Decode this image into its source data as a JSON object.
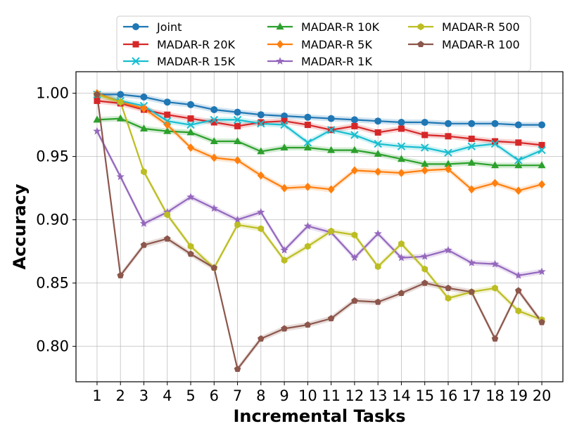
{
  "chart_data": {
    "type": "line",
    "title": "",
    "xlabel": "Incremental Tasks",
    "ylabel": "Accuracy",
    "x": [
      1,
      2,
      3,
      4,
      5,
      6,
      7,
      8,
      9,
      10,
      11,
      12,
      13,
      14,
      15,
      16,
      17,
      18,
      19,
      20
    ],
    "xticks": [
      "1",
      "2",
      "3",
      "4",
      "5",
      "6",
      "7",
      "8",
      "9",
      "10",
      "11",
      "12",
      "13",
      "14",
      "15",
      "16",
      "17",
      "18",
      "19",
      "20"
    ],
    "yticks": [
      "0.80",
      "0.85",
      "0.90",
      "0.95",
      "1.00"
    ],
    "ylim": [
      0.772,
      1.017
    ],
    "xlim": [
      0.1,
      20.9
    ],
    "grid": true,
    "legend_position": "top",
    "series": [
      {
        "name": "Joint",
        "color": "#1f77b4",
        "marker": "circle",
        "values": [
          0.999,
          0.999,
          0.997,
          0.993,
          0.991,
          0.987,
          0.985,
          0.983,
          0.982,
          0.981,
          0.98,
          0.979,
          0.978,
          0.977,
          0.977,
          0.976,
          0.976,
          0.976,
          0.975,
          0.975
        ]
      },
      {
        "name": "MADAR-R 20K",
        "color": "#d62728",
        "marker": "square",
        "values": [
          0.994,
          0.992,
          0.987,
          0.983,
          0.98,
          0.977,
          0.974,
          0.977,
          0.978,
          0.975,
          0.971,
          0.974,
          0.969,
          0.972,
          0.967,
          0.966,
          0.964,
          0.962,
          0.961,
          0.959
        ]
      },
      {
        "name": "MADAR-R 15K",
        "color": "#17becf",
        "marker": "x",
        "values": [
          0.999,
          0.994,
          0.99,
          0.978,
          0.975,
          0.979,
          0.979,
          0.976,
          0.975,
          0.961,
          0.971,
          0.967,
          0.96,
          0.958,
          0.957,
          0.953,
          0.958,
          0.96,
          0.947,
          0.955
        ]
      },
      {
        "name": "MADAR-R 10K",
        "color": "#2ca02c",
        "marker": "triangle",
        "values": [
          0.979,
          0.98,
          0.972,
          0.97,
          0.969,
          0.962,
          0.962,
          0.954,
          0.957,
          0.957,
          0.955,
          0.955,
          0.952,
          0.948,
          0.944,
          0.944,
          0.945,
          0.943,
          0.943,
          0.943
        ]
      },
      {
        "name": "MADAR-R 5K",
        "color": "#ff7f0e",
        "marker": "diamond",
        "values": [
          1.0,
          0.993,
          0.988,
          0.975,
          0.957,
          0.949,
          0.947,
          0.935,
          0.925,
          0.926,
          0.924,
          0.939,
          0.938,
          0.937,
          0.939,
          0.94,
          0.924,
          0.929,
          0.923,
          0.928
        ]
      },
      {
        "name": "MADAR-R 1K",
        "color": "#9467bd",
        "marker": "star",
        "values": [
          0.97,
          0.934,
          0.897,
          0.906,
          0.918,
          0.909,
          0.9,
          0.906,
          0.876,
          0.895,
          0.89,
          0.87,
          0.889,
          0.87,
          0.871,
          0.876,
          0.866,
          0.865,
          0.856,
          0.859
        ]
      },
      {
        "name": "MADAR-R 500",
        "color": "#bcbd22",
        "marker": "hexagon",
        "values": [
          0.999,
          0.993,
          0.938,
          0.904,
          0.879,
          0.862,
          0.896,
          0.893,
          0.868,
          0.879,
          0.891,
          0.888,
          0.863,
          0.881,
          0.861,
          0.838,
          0.843,
          0.846,
          0.828,
          0.821
        ]
      },
      {
        "name": "MADAR-R 100",
        "color": "#8c564b",
        "marker": "pentagon",
        "values": [
          0.999,
          0.856,
          0.88,
          0.885,
          0.873,
          0.862,
          0.782,
          0.806,
          0.814,
          0.817,
          0.822,
          0.836,
          0.835,
          0.842,
          0.85,
          0.846,
          0.843,
          0.806,
          0.844,
          0.819
        ]
      }
    ]
  }
}
